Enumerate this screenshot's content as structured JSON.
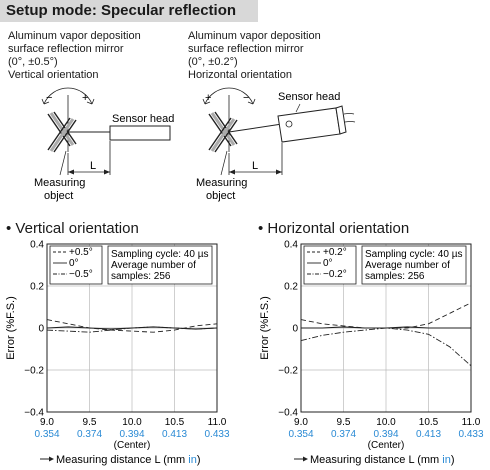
{
  "header": {
    "title": "Setup mode: Specular reflection"
  },
  "setup_left": {
    "mirror_line1": "Aluminum vapor deposition",
    "mirror_line2": "surface reflection mirror",
    "tolerance": "(0°, ±0.5°)",
    "orientation": "Vertical orientation",
    "sensor_label": "Sensor head",
    "distance_label": "L",
    "minus_sign": "−",
    "plus_sign": "+",
    "object_line1": "Measuring",
    "object_line2": "object"
  },
  "setup_right": {
    "mirror_line1": "Aluminum vapor deposition",
    "mirror_line2": "surface reflection mirror",
    "tolerance": "(0°, ±0.2°)",
    "orientation": "Horizontal orientation",
    "sensor_label": "Sensor head",
    "distance_label": "L",
    "plus_sign": "+",
    "minus_sign": "−",
    "object_line1": "Measuring",
    "object_line2": "object"
  },
  "sections": {
    "left_title": "• Vertical orientation",
    "right_title": "• Horizontal orientation"
  },
  "colors": {
    "header_bg": "#d8d8d8",
    "inch_label": "#2a8ad4",
    "grid": "#bbbbbb"
  },
  "chart_data": [
    {
      "type": "line",
      "ylabel": "Error (%F.S.)",
      "xlabel_prefix": "Measuring distance L (mm ",
      "xlabel_inch": "in",
      "xlabel_suffix": ")",
      "xlim": [
        9.0,
        11.0
      ],
      "ylim": [
        -0.4,
        0.4
      ],
      "x_ticks": [
        "9.0",
        "9.5",
        "10.0",
        "10.5",
        "11.0"
      ],
      "x_ticks_inch": [
        "0.354",
        "0.374",
        "0.394",
        "0.413",
        "0.433"
      ],
      "center_label": "(Center)",
      "y_ticks": [
        "0.4",
        "0.2",
        "0",
        "−0.2",
        "−0.4"
      ],
      "legend": [
        "+0.5°",
        "0°",
        "−0.5°"
      ],
      "legend_position": "top-left",
      "info_line1": "Sampling cycle: 40 µs",
      "info_line2": "Average number of",
      "info_line3": "samples: 256",
      "series": [
        {
          "name": "+0.5°",
          "style": "dashed",
          "x": [
            9.0,
            9.25,
            9.5,
            9.75,
            10.0,
            10.25,
            10.5,
            10.75,
            11.0
          ],
          "y": [
            0.04,
            0.02,
            0.0,
            -0.01,
            -0.015,
            -0.02,
            -0.01,
            0.01,
            0.02
          ]
        },
        {
          "name": "0°",
          "style": "solid",
          "x": [
            9.0,
            9.25,
            9.5,
            9.75,
            10.0,
            10.25,
            10.5,
            10.75,
            11.0
          ],
          "y": [
            0.0,
            0.005,
            0.0,
            -0.005,
            0.0,
            0.005,
            0.0,
            -0.005,
            0.0
          ]
        },
        {
          "name": "−0.5°",
          "style": "dashdot",
          "x": [
            9.0,
            9.25,
            9.5,
            9.75,
            10.0,
            10.25,
            10.5,
            10.75,
            11.0
          ],
          "y": [
            -0.01,
            -0.015,
            -0.02,
            -0.01,
            0.0,
            0.005,
            0.0,
            -0.005,
            0.0
          ]
        }
      ]
    },
    {
      "type": "line",
      "ylabel": "Error (%F.S.)",
      "xlabel_prefix": "Measuring distance L (mm ",
      "xlabel_inch": "in",
      "xlabel_suffix": ")",
      "xlim": [
        9.0,
        11.0
      ],
      "ylim": [
        -0.4,
        0.4
      ],
      "x_ticks": [
        "9.0",
        "9.5",
        "10.0",
        "10.5",
        "11.0"
      ],
      "x_ticks_inch": [
        "0.354",
        "0.374",
        "0.394",
        "0.413",
        "0.433"
      ],
      "center_label": "(Center)",
      "y_ticks": [
        "0.4",
        "0.2",
        "0",
        "−0.2",
        "−0.4"
      ],
      "legend": [
        "+0.2°",
        "0°",
        "−0.2°"
      ],
      "legend_position": "top-left",
      "info_line1": "Sampling cycle: 40 µs",
      "info_line2": "Average number of",
      "info_line3": "samples: 256",
      "series": [
        {
          "name": "+0.2°",
          "style": "dashed",
          "x": [
            9.0,
            9.25,
            9.5,
            9.75,
            10.0,
            10.25,
            10.5,
            10.75,
            11.0
          ],
          "y": [
            0.04,
            0.02,
            0.01,
            0.0,
            0.0,
            0.0,
            0.02,
            0.07,
            0.12
          ]
        },
        {
          "name": "0°",
          "style": "solid",
          "x": [
            9.0,
            9.25,
            9.5,
            9.75,
            10.0,
            10.25,
            10.5,
            10.75,
            11.0
          ],
          "y": [
            0.0,
            0.0,
            0.005,
            0.0,
            0.0,
            0.005,
            0.0,
            0.0,
            0.0
          ]
        },
        {
          "name": "−0.2°",
          "style": "dashdot",
          "x": [
            9.0,
            9.25,
            9.5,
            9.75,
            10.0,
            10.25,
            10.5,
            10.75,
            11.0
          ],
          "y": [
            -0.06,
            -0.035,
            -0.02,
            -0.01,
            0.0,
            -0.01,
            -0.03,
            -0.09,
            -0.18
          ]
        }
      ]
    }
  ]
}
